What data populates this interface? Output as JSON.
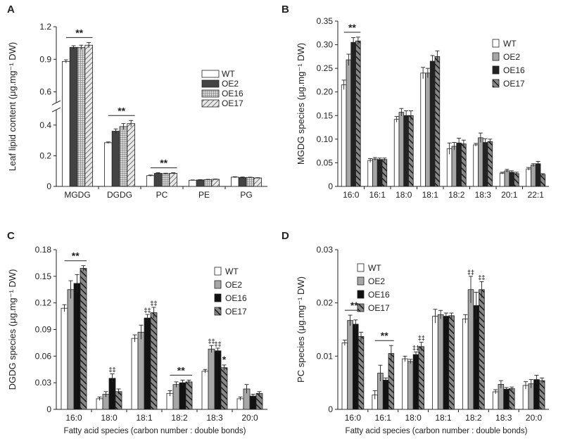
{
  "chart_data": [
    {
      "panel": "A",
      "type": "bar",
      "ylabel": "Leaf lipid content (μg.mg⁻¹ DW)",
      "categories": [
        "MGDG",
        "DGDG",
        "PC",
        "PE",
        "PG"
      ],
      "series_names": [
        "WT",
        "OE2",
        "OE16",
        "OE17"
      ],
      "series_colors": [
        "#ffffff",
        "#444444",
        "pattern-grid",
        "pattern-hatch"
      ],
      "legend": [
        "WT",
        "OE2",
        "OE16",
        "OE17"
      ],
      "axis_break": true,
      "ylim_lower": [
        0,
        0.5
      ],
      "ylim_upper": [
        0.5,
        1.2
      ],
      "yticks": [
        0,
        0.2,
        0.4,
        0.6,
        0.9,
        1.2
      ],
      "ytick_labels": [
        "0",
        "0.2",
        "0.4",
        "0.6",
        "0.9",
        "1.2"
      ],
      "values": [
        [
          0.88,
          1.01,
          1.01,
          1.03
        ],
        [
          0.285,
          0.36,
          0.39,
          0.41
        ],
        [
          0.07,
          0.085,
          0.083,
          0.085
        ],
        [
          0.04,
          0.042,
          0.044,
          0.046
        ],
        [
          0.06,
          0.058,
          0.058,
          0.055
        ]
      ],
      "errors": [
        [
          0.015,
          0.015,
          0.02,
          0.025
        ],
        [
          0.005,
          0.015,
          0.02,
          0.02
        ],
        [
          0.004,
          0.004,
          0.003,
          0.004
        ],
        [
          0.002,
          0.002,
          0.002,
          0.002
        ],
        [
          0.003,
          0.003,
          0.002,
          0.002
        ]
      ],
      "significance": [
        {
          "category": 0,
          "label": "**"
        },
        {
          "category": 1,
          "label": "**"
        },
        {
          "category": 2,
          "label": "**"
        }
      ],
      "daggers": []
    },
    {
      "panel": "B",
      "type": "bar",
      "ylabel": "MGDG species (μg.mg⁻¹ DW)",
      "categories": [
        "16:0",
        "16:1",
        "18:0",
        "18:1",
        "18:2",
        "18:3",
        "20:1",
        "22:1"
      ],
      "series_names": [
        "WT",
        "OE2",
        "OE16",
        "OE17"
      ],
      "series_colors": [
        "#ffffff",
        "#a6a6a6",
        "#222222",
        "pattern-stripe"
      ],
      "legend": [
        "WT",
        "OE2",
        "OE16",
        "OE17"
      ],
      "ylim": [
        0,
        0.35
      ],
      "yticks": [
        0,
        0.05,
        0.1,
        0.15,
        0.2,
        0.25,
        0.3,
        0.35
      ],
      "ytick_labels": [
        "0",
        "0.05",
        "0.10",
        "0.15",
        "0.20",
        "0.25",
        "0.30",
        "0.35"
      ],
      "values": [
        [
          0.215,
          0.268,
          0.305,
          0.308
        ],
        [
          0.055,
          0.058,
          0.057,
          0.057
        ],
        [
          0.142,
          0.157,
          0.15,
          0.15
        ],
        [
          0.24,
          0.24,
          0.265,
          0.275
        ],
        [
          0.08,
          0.085,
          0.092,
          0.09
        ],
        [
          0.088,
          0.103,
          0.093,
          0.095
        ],
        [
          0.028,
          0.033,
          0.03,
          0.027
        ],
        [
          0.037,
          0.045,
          0.048,
          0.025
        ]
      ],
      "errors": [
        [
          0.01,
          0.012,
          0.01,
          0.008
        ],
        [
          0.004,
          0.003,
          0.003,
          0.003
        ],
        [
          0.006,
          0.008,
          0.01,
          0.01
        ],
        [
          0.012,
          0.01,
          0.012,
          0.012
        ],
        [
          0.012,
          0.008,
          0.01,
          0.008
        ],
        [
          0.003,
          0.01,
          0.008,
          0.005
        ],
        [
          0.002,
          0.003,
          0.003,
          0.003
        ],
        [
          0.003,
          0.003,
          0.005,
          0.002
        ]
      ],
      "significance": [
        {
          "category": 0,
          "label": "**"
        }
      ],
      "daggers": []
    },
    {
      "panel": "C",
      "type": "bar",
      "ylabel": "DGDG species (μg.mg⁻¹ DW)",
      "xlabel": "Fatty acid species (carbon  number : double bonds)",
      "categories": [
        "16:0",
        "18:0",
        "18:1",
        "18:2",
        "18:3",
        "20:0"
      ],
      "series_names": [
        "WT",
        "OE2",
        "OE16",
        "OE17"
      ],
      "series_colors": [
        "#ffffff",
        "#a6a6a6",
        "#111111",
        "pattern-stripe"
      ],
      "legend": [
        "WT",
        "OE2",
        "OE16",
        "OE17"
      ],
      "ylim": [
        0,
        0.18
      ],
      "yticks": [
        0,
        0.03,
        0.06,
        0.09,
        0.12,
        0.15,
        0.18
      ],
      "ytick_labels": [
        "0",
        "0.03",
        "0.06",
        "0.09",
        "0.12",
        "0.15",
        "0.18"
      ],
      "values": [
        [
          0.114,
          0.135,
          0.142,
          0.159
        ],
        [
          0.012,
          0.017,
          0.035,
          0.02
        ],
        [
          0.08,
          0.087,
          0.103,
          0.109
        ],
        [
          0.018,
          0.028,
          0.03,
          0.031
        ],
        [
          0.043,
          0.068,
          0.066,
          0.047
        ],
        [
          0.012,
          0.023,
          0.015,
          0.018
        ]
      ],
      "errors": [
        [
          0.004,
          0.01,
          0.01,
          0.003
        ],
        [
          0.002,
          0.003,
          0.005,
          0.003
        ],
        [
          0.004,
          0.008,
          0.004,
          0.006
        ],
        [
          0.003,
          0.003,
          0.003,
          0.002
        ],
        [
          0.002,
          0.004,
          0.003,
          0.003
        ],
        [
          0.002,
          0.005,
          0.002,
          0.002
        ]
      ],
      "significance": [
        {
          "category": 0,
          "label": "**"
        },
        {
          "category": 3,
          "label": "**"
        }
      ],
      "daggers": [
        {
          "category": 1,
          "series": 2,
          "label": "**"
        },
        {
          "category": 2,
          "series": 2,
          "label": "**"
        },
        {
          "category": 2,
          "series": 3,
          "label": "**"
        },
        {
          "category": 4,
          "series": 1,
          "label": "**"
        },
        {
          "category": 4,
          "series": 2,
          "label": "**"
        },
        {
          "category": 4,
          "series": 3,
          "label": "*"
        }
      ]
    },
    {
      "panel": "D",
      "type": "bar",
      "ylabel": "PC species (μg.mg⁻¹ DW)",
      "xlabel": "Fatty acid species (carbon  number : double bonds)",
      "categories": [
        "16:0",
        "16:1",
        "18:0",
        "18:1",
        "18:2",
        "18:3",
        "20:0"
      ],
      "series_names": [
        "WT",
        "OE2",
        "OE16",
        "OE17"
      ],
      "series_colors": [
        "#ffffff",
        "#a6a6a6",
        "#111111",
        "pattern-stripe"
      ],
      "legend": [
        "WT",
        "OE2",
        "OE16",
        "OE17"
      ],
      "ylim": [
        0,
        0.03
      ],
      "yticks": [
        0,
        0.01,
        0.02,
        0.03
      ],
      "ytick_labels": [
        "0",
        "0.01",
        "0.02",
        "0.03"
      ],
      "values": [
        [
          0.0125,
          0.0167,
          0.016,
          0.0137
        ],
        [
          0.0027,
          0.0068,
          0.0055,
          0.0105
        ],
        [
          0.0095,
          0.009,
          0.0103,
          0.0118
        ],
        [
          0.0175,
          0.0178,
          0.0175,
          0.0176
        ],
        [
          0.017,
          0.0225,
          0.0195,
          0.0225
        ],
        [
          0.0033,
          0.0047,
          0.0038,
          0.0039
        ],
        [
          0.0045,
          0.0048,
          0.0056,
          0.0054
        ]
      ],
      "errors": [
        [
          0.0005,
          0.001,
          0.0008,
          0.0008
        ],
        [
          0.0008,
          0.0015,
          0.0004,
          0.0015
        ],
        [
          0.0005,
          0.0004,
          0.0005,
          0.0008
        ],
        [
          0.0013,
          0.0008,
          0.0006,
          0.0005
        ],
        [
          0.0008,
          0.0025,
          0.0025,
          0.0015
        ],
        [
          0.0004,
          0.0007,
          0.0003,
          0.0003
        ],
        [
          0.0007,
          0.0008,
          0.0008,
          0.0005
        ]
      ],
      "significance": [
        {
          "category": 0,
          "label": "**"
        },
        {
          "category": 1,
          "label": "**"
        }
      ],
      "daggers": [
        {
          "category": 2,
          "series": 2,
          "label": "**"
        },
        {
          "category": 2,
          "series": 3,
          "label": "**"
        },
        {
          "category": 4,
          "series": 1,
          "label": "**"
        },
        {
          "category": 4,
          "series": 3,
          "label": "**"
        }
      ]
    }
  ]
}
